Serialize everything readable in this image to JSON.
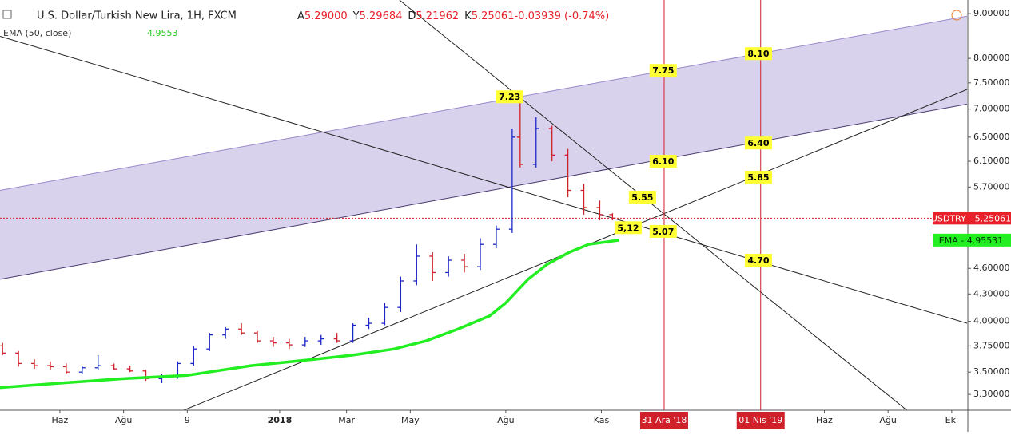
{
  "chart_data": {
    "type": "ohlc",
    "title": "U.S. Dollar/Turkish New Lira, 1H, FXCM",
    "ohlc_header": [
      {
        "key": "A",
        "text": "5.29000"
      },
      {
        "key": "Y",
        "text": "5.29684"
      },
      {
        "key": "D",
        "text": "5.21962"
      },
      {
        "key": "K",
        "text": "5.25061"
      },
      {
        "key": "",
        "text": "-0.03939 (-0.74%)"
      }
    ],
    "indicator": {
      "name": "EMA (50, close)",
      "value": "4.9553"
    },
    "log_scale": true,
    "xlim": [
      -1.88,
      28.48
    ],
    "ylim": [
      3.165,
      9.33
    ],
    "xticks": [
      {
        "value": 0,
        "label": "Haz"
      },
      {
        "value": 2,
        "label": "Ağu"
      },
      {
        "value": 4,
        "label": "9"
      },
      {
        "value": 6.9,
        "label": "2018"
      },
      {
        "value": 9,
        "label": "Mar"
      },
      {
        "value": 11,
        "label": "May"
      },
      {
        "value": 14,
        "label": "Ağu"
      },
      {
        "value": 17,
        "label": "Kas"
      },
      {
        "value": 24,
        "label": "Haz"
      },
      {
        "value": 26,
        "label": "Ağu"
      },
      {
        "value": 28,
        "label": "Eki"
      }
    ],
    "yticks": [
      {
        "value": 9,
        "label": "9.00000"
      },
      {
        "value": 8,
        "label": "8.00000"
      },
      {
        "value": 7.5,
        "label": "7.50000"
      },
      {
        "value": 7,
        "label": "7.00000"
      },
      {
        "value": 6.5,
        "label": "6.50000"
      },
      {
        "value": 6.1,
        "label": "6.10000"
      },
      {
        "value": 5.7,
        "label": "5.70000"
      },
      {
        "value": 4.6,
        "label": "4.60000"
      },
      {
        "value": 4.3,
        "label": "4.30000"
      },
      {
        "value": 4,
        "label": "4.00000"
      },
      {
        "value": 3.75,
        "label": "3.75000"
      },
      {
        "value": 3.5,
        "label": "3.50000"
      },
      {
        "value": 3.3,
        "label": "3.30000"
      }
    ],
    "bars": {
      "up_color": "#1a27c9",
      "down_color": "#d0202a",
      "x": [
        -1.8,
        -1.3,
        -0.8,
        -0.3,
        0.2,
        0.7,
        1.2,
        1.7,
        2.2,
        2.7,
        3.2,
        3.7,
        4.2,
        4.7,
        5.2,
        5.7,
        6.2,
        6.7,
        7.2,
        7.7,
        8.2,
        8.7,
        9.2,
        9.7,
        10.2,
        10.7,
        11.2,
        11.7,
        12.2,
        12.7,
        13.2,
        13.7,
        14.2,
        14.45,
        14.95,
        15.45,
        15.95,
        16.45,
        16.95,
        17.35
      ],
      "open": [
        3.75,
        3.68,
        3.58,
        3.56,
        3.55,
        3.5,
        3.54,
        3.56,
        3.53,
        3.51,
        3.44,
        3.46,
        3.58,
        3.72,
        3.86,
        3.92,
        3.88,
        3.8,
        3.78,
        3.76,
        3.8,
        3.82,
        3.8,
        3.96,
        3.98,
        4.15,
        4.45,
        4.75,
        4.55,
        4.7,
        4.62,
        4.9,
        5.1,
        6.5,
        6.05,
        6.65,
        6.2,
        5.65,
        5.4,
        5.3
      ],
      "high": [
        3.78,
        3.7,
        3.62,
        3.6,
        3.58,
        3.56,
        3.66,
        3.58,
        3.56,
        3.52,
        3.48,
        3.6,
        3.75,
        3.88,
        3.94,
        3.98,
        3.9,
        3.84,
        3.82,
        3.84,
        3.86,
        3.88,
        3.98,
        4.04,
        4.2,
        4.5,
        4.9,
        4.8,
        4.75,
        4.78,
        4.98,
        5.15,
        6.65,
        7.23,
        6.85,
        6.7,
        6.3,
        5.75,
        5.5,
        5.32
      ],
      "low": [
        3.66,
        3.55,
        3.53,
        3.52,
        3.48,
        3.48,
        3.52,
        3.52,
        3.5,
        3.42,
        3.4,
        3.44,
        3.56,
        3.7,
        3.82,
        3.86,
        3.78,
        3.74,
        3.72,
        3.74,
        3.76,
        3.78,
        3.78,
        3.92,
        3.96,
        4.1,
        4.4,
        4.45,
        4.5,
        4.55,
        4.58,
        4.85,
        5.05,
        6.0,
        6.0,
        6.1,
        5.55,
        5.3,
        5.22,
        5.22
      ],
      "close": [
        3.68,
        3.58,
        3.56,
        3.55,
        3.5,
        3.54,
        3.56,
        3.53,
        3.51,
        3.44,
        3.46,
        3.58,
        3.72,
        3.86,
        3.92,
        3.88,
        3.8,
        3.78,
        3.76,
        3.8,
        3.82,
        3.8,
        3.96,
        3.98,
        4.15,
        4.45,
        4.75,
        4.55,
        4.7,
        4.62,
        4.9,
        5.1,
        6.5,
        6.05,
        6.65,
        6.2,
        5.65,
        5.4,
        5.3,
        5.25061
      ]
    },
    "series": [
      {
        "name": "EMA",
        "color": "#22ee22",
        "x": [
          -1.88,
          0,
          2,
          4,
          6,
          8,
          9.2,
          10.5,
          11.5,
          12.5,
          13.5,
          14,
          14.7,
          15.3,
          16,
          16.6,
          17.56
        ],
        "values": [
          3.36,
          3.4,
          3.44,
          3.47,
          3.56,
          3.62,
          3.66,
          3.72,
          3.8,
          3.92,
          4.06,
          4.2,
          4.47,
          4.65,
          4.8,
          4.9,
          4.95531
        ]
      }
    ],
    "last_price": 5.25061,
    "price_badge": "USDTRY - 5.25061",
    "ema_last": 4.95531,
    "ema_badge": "EMA - 4.95531",
    "channel": {
      "color": "#9a88cc",
      "upper": {
        "x": [
          -1.88,
          28.48
        ],
        "y": [
          5.65,
          8.94
        ]
      },
      "lower": {
        "x": [
          -1.88,
          28.48
        ],
        "y": [
          4.47,
          7.09
        ]
      }
    },
    "trendlines": [
      {
        "x": [
          -1.88,
          28.48
        ],
        "y": [
          8.48,
          3.98
        ]
      },
      {
        "x": [
          10.66,
          26.59
        ],
        "y": [
          9.33,
          3.165
        ]
      },
      {
        "x": [
          3.89,
          28.48
        ],
        "y": [
          3.165,
          7.37
        ]
      }
    ],
    "vlines": [
      {
        "x": 18.97,
        "label": "31 Ara '18"
      },
      {
        "x": 22,
        "label": "01 Nis '19"
      }
    ],
    "annotations": [
      {
        "x": 14.12,
        "value": 7.23
      },
      {
        "x": 18.94,
        "value": 7.75
      },
      {
        "x": 21.93,
        "value": {
          "value": 8.1,
          "label": "8.10"
        }
      },
      {
        "x": 18.94,
        "value": {
          "value": 6.1,
          "label": "6.10"
        }
      },
      {
        "x": 21.93,
        "value": {
          "value": 6.4,
          "label": "6.40"
        }
      },
      {
        "x": 18.29,
        "value": 5.55
      },
      {
        "x": 21.93,
        "value": 5.85
      },
      {
        "x": 18.94,
        "value": 5.07
      },
      {
        "x": 17.84,
        "value": {
          "value": 5.12,
          "label": "5,12"
        }
      },
      {
        "x": 21.93,
        "value": {
          "value": 4.7,
          "label": "4.70"
        }
      }
    ]
  }
}
